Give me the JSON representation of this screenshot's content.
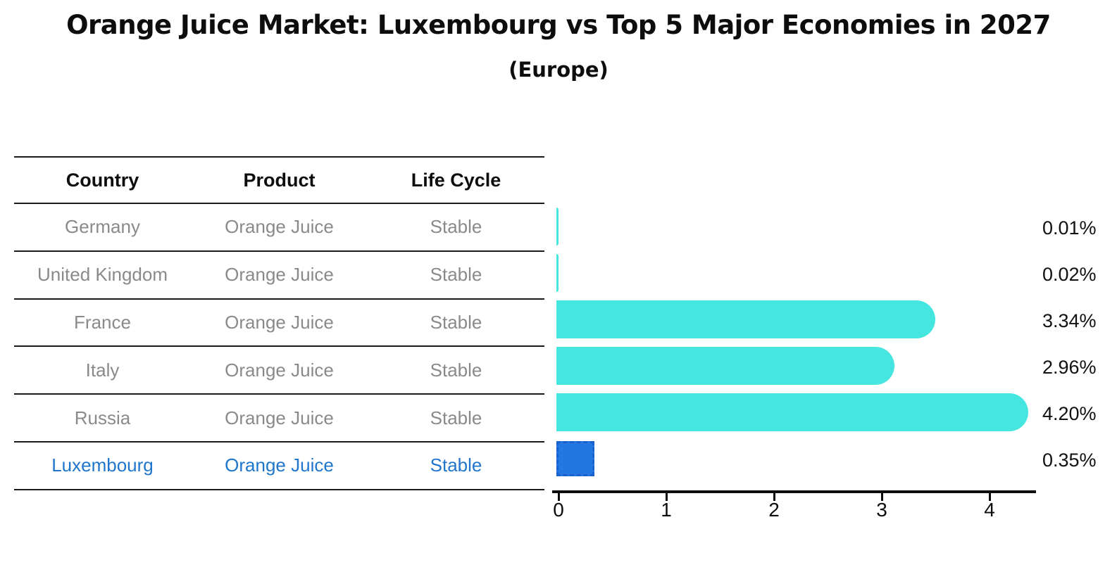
{
  "title": "Orange Juice Market: Luxembourg vs Top 5 Major Economies in 2027",
  "subtitle": "(Europe)",
  "table": {
    "columns": [
      "Country",
      "Product",
      "Life Cycle"
    ],
    "rows": [
      {
        "country": "Germany",
        "product": "Orange Juice",
        "life_cycle": "Stable",
        "highlighted": false
      },
      {
        "country": "United Kingdom",
        "product": "Orange Juice",
        "life_cycle": "Stable",
        "highlighted": false
      },
      {
        "country": "France",
        "product": "Orange Juice",
        "life_cycle": "Stable",
        "highlighted": false
      },
      {
        "country": "Italy",
        "product": "Orange Juice",
        "life_cycle": "Stable",
        "highlighted": false
      },
      {
        "country": "Russia",
        "product": "Orange Juice",
        "life_cycle": "Stable",
        "highlighted": false
      },
      {
        "country": "Luxembourg",
        "product": "Orange Juice",
        "life_cycle": "Stable",
        "highlighted": true
      }
    ]
  },
  "chart_data": {
    "type": "bar",
    "orientation": "horizontal",
    "title": "Orange Juice Market: Luxembourg vs Top 5 Major Economies in 2027",
    "subtitle": "(Europe)",
    "categories": [
      "Germany",
      "United Kingdom",
      "France",
      "Italy",
      "Russia",
      "Luxembourg"
    ],
    "values": [
      0.01,
      0.02,
      3.34,
      2.96,
      4.2,
      0.35
    ],
    "value_labels": [
      "0.01%",
      "0.02%",
      "3.34%",
      "2.96%",
      "4.20%",
      "0.35%"
    ],
    "x_ticks": [
      0,
      1,
      2,
      3,
      4
    ],
    "xlim": [
      0,
      4.45
    ],
    "xlabel": "",
    "ylabel": "",
    "grid": false,
    "legend": "none",
    "bar_color": "#45E6E0",
    "highlight_index": 5,
    "highlight_category": "Luxembourg",
    "highlight_color": "#2278E0",
    "highlight_border_color": "#1A60D0"
  },
  "colors": {
    "table_text_gray": "#8A8A8A",
    "highlight_text_blue": "#1F76CC",
    "axis_black": "#0D0D0D",
    "background": "#FFFFFF"
  }
}
